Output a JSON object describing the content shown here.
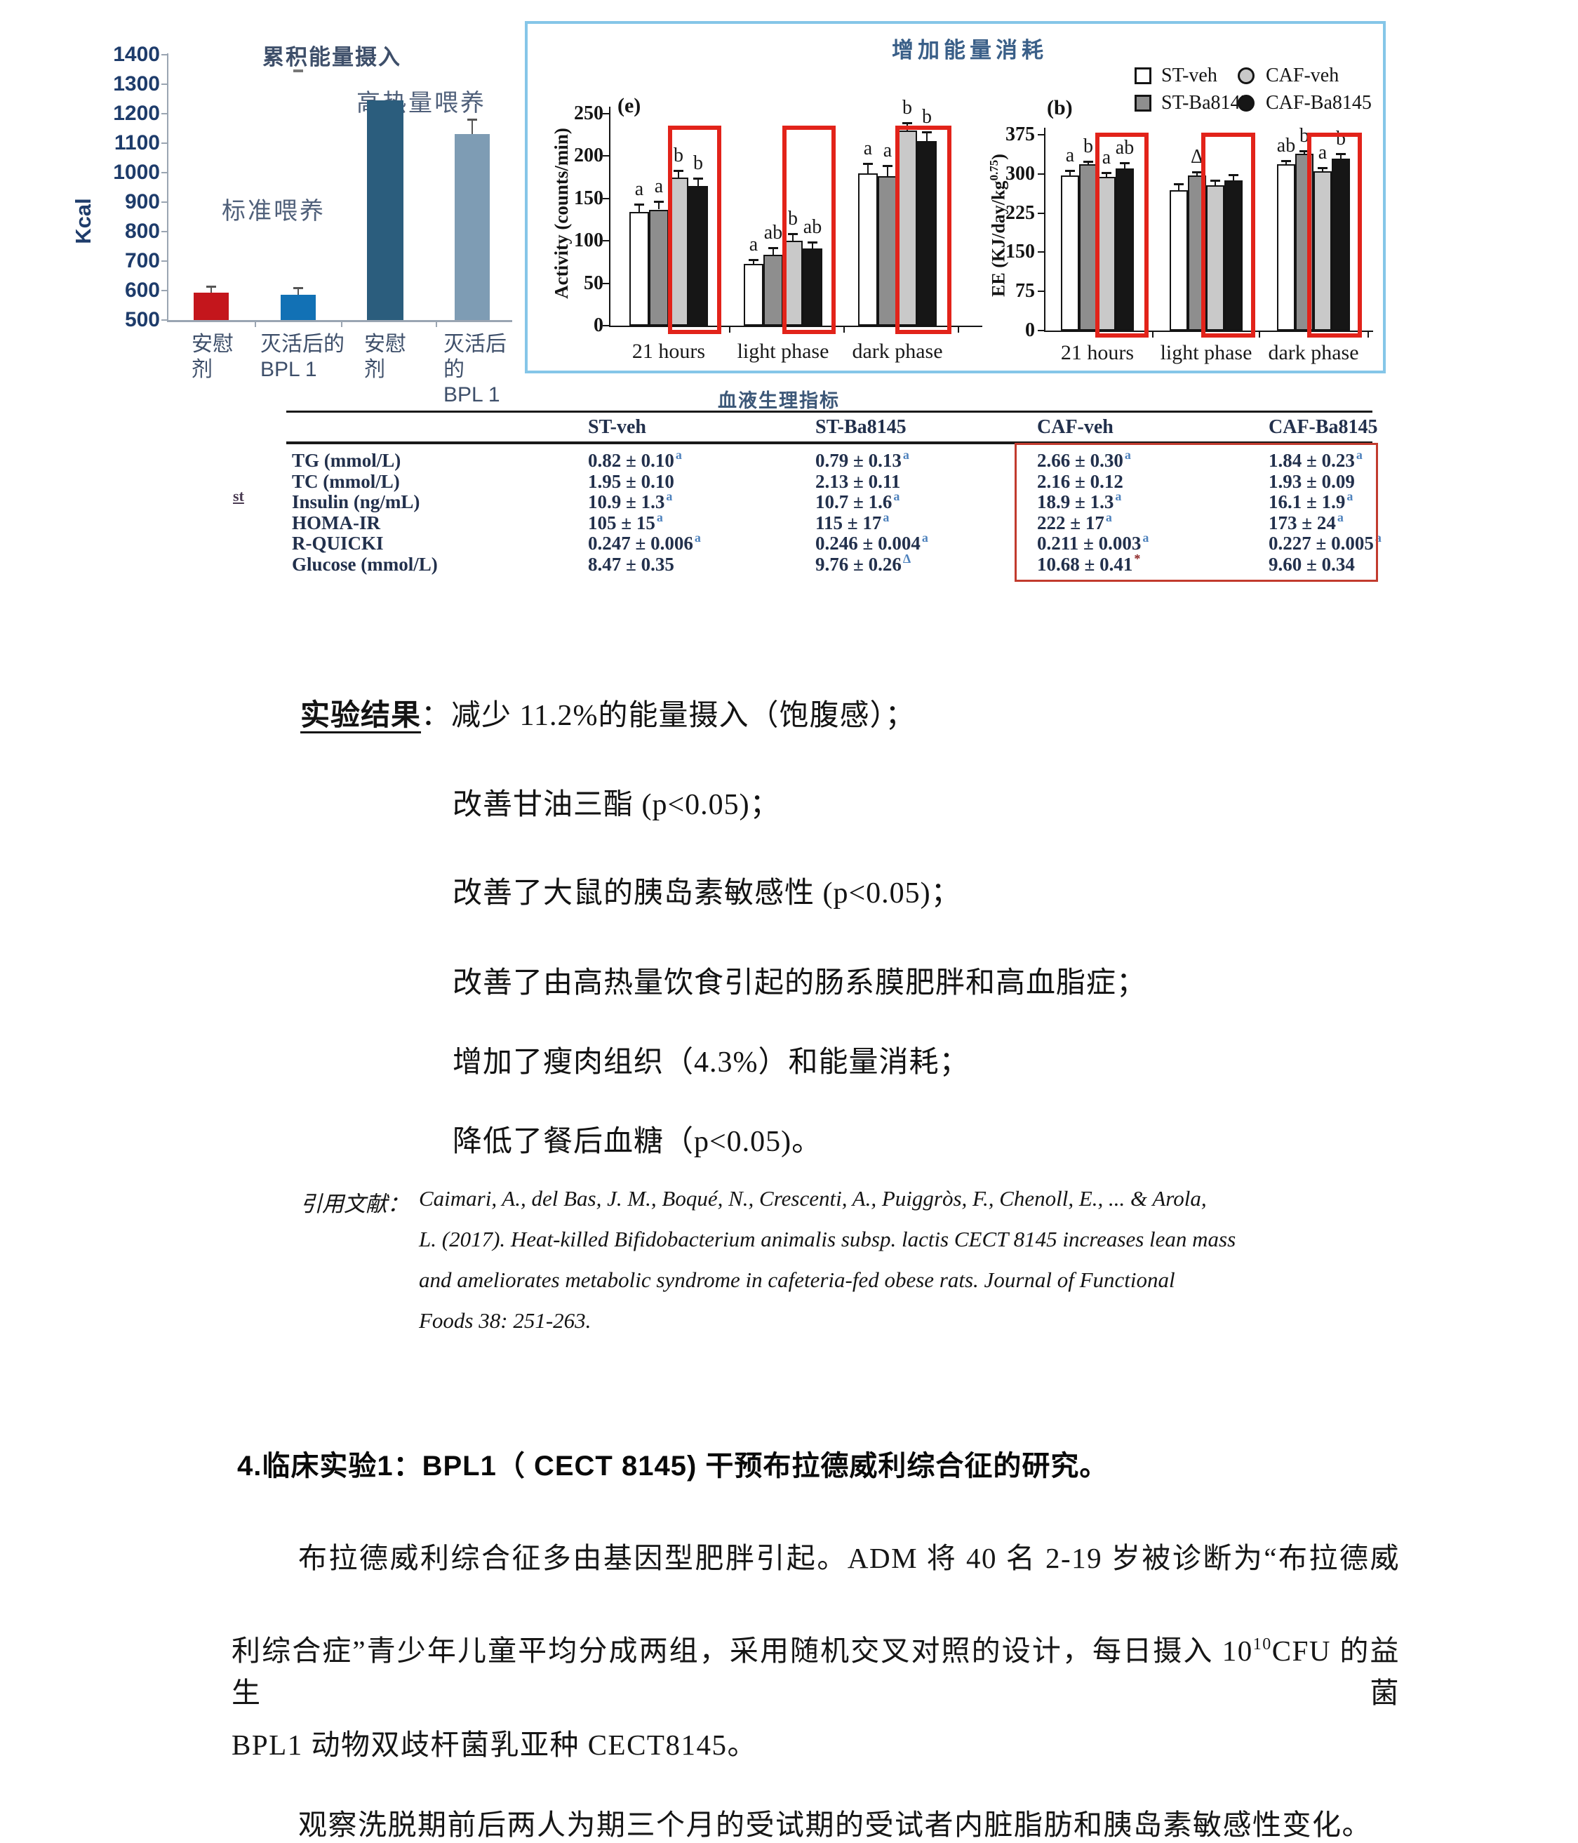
{
  "figure_box": {
    "title": "增加能量消耗"
  },
  "chart_data": [
    {
      "type": "bar",
      "title": "累积能量摄入",
      "ylabel": "Kcal",
      "ylim": [
        500,
        1400
      ],
      "yticks": [
        500,
        600,
        700,
        800,
        900,
        1000,
        1100,
        1200,
        1300,
        1400
      ],
      "categories": [
        "安慰\n剂",
        "灭活后的\nBPL 1",
        "安慰\n剂",
        "灭活后的\nBPL 1"
      ],
      "values": [
        592,
        585,
        1245,
        1130
      ],
      "errors": [
        19,
        21,
        0,
        48
      ],
      "bar_colors": [
        "#c4161c",
        "#1271b5",
        "#2b5d7d",
        "#7e9cb4"
      ],
      "annotations": [
        "标准喂养",
        "高热量喂养"
      ],
      "grid": "off",
      "legend_position": "none"
    },
    {
      "type": "grouped-bar",
      "panel": "(e)",
      "ylabel": "Activity (counts/min)",
      "ylim": [
        0,
        250
      ],
      "yticks": [
        0,
        50,
        100,
        150,
        200,
        250
      ],
      "categories": [
        "21 hours",
        "light phase",
        "dark phase"
      ],
      "series": [
        {
          "name": "ST-veh",
          "fill": "#ffffff",
          "values": [
            134,
            73,
            180
          ],
          "errors": [
            8,
            4,
            10
          ],
          "sig": [
            "a",
            "a",
            "a"
          ]
        },
        {
          "name": "ST-Ba8145",
          "fill": "#8e8e8e",
          "values": [
            137,
            84,
            176
          ],
          "errors": [
            9,
            7,
            12
          ],
          "sig": [
            "a",
            "ab",
            "a"
          ]
        },
        {
          "name": "CAF-veh",
          "fill": "#c9c9c9",
          "values": [
            175,
            100,
            230
          ],
          "errors": [
            7,
            8,
            8
          ],
          "sig": [
            "b",
            "b",
            "b"
          ]
        },
        {
          "name": "CAF-Ba8145",
          "fill": "#161616",
          "values": [
            165,
            91,
            218
          ],
          "errors": [
            8,
            7,
            10
          ],
          "sig": [
            "b",
            "ab",
            "b"
          ]
        }
      ],
      "highlight": "red boxes around CAF-veh and CAF-Ba8145 bars in every group"
    },
    {
      "type": "grouped-bar",
      "panel": "(b)",
      "ylabel_pre": "EE (KJ/day/kg",
      "ylabel_sup": "0.75",
      "ylabel_end": ")",
      "ylim": [
        0,
        375
      ],
      "yticks": [
        0,
        75,
        150,
        225,
        300,
        375
      ],
      "categories": [
        "21 hours",
        "light phase",
        "dark phase"
      ],
      "series": [
        {
          "name": "ST-veh",
          "fill": "#ffffff",
          "values": [
            297,
            269,
            318
          ],
          "errors": [
            8,
            10,
            6
          ],
          "sig": [
            "a",
            "",
            "ab"
          ]
        },
        {
          "name": "ST-Ba8145",
          "fill": "#8e8e8e",
          "values": [
            318,
            297,
            339
          ],
          "errors": [
            4,
            5,
            4
          ],
          "sig": [
            "b",
            "Δ",
            "b"
          ]
        },
        {
          "name": "CAF-veh",
          "fill": "#c9c9c9",
          "values": [
            294,
            278,
            305
          ],
          "errors": [
            7,
            8,
            6
          ],
          "sig": [
            "a",
            "",
            "a"
          ]
        },
        {
          "name": "CAF-Ba8145",
          "fill": "#161616",
          "values": [
            311,
            287,
            329
          ],
          "errors": [
            9,
            10,
            9
          ],
          "sig": [
            "ab",
            "",
            "b"
          ]
        }
      ],
      "highlight": "red boxes around CAF-veh and CAF-Ba8145 bars in every group"
    }
  ],
  "legend": [
    {
      "label": "ST-veh",
      "marker": "square",
      "fill": "#ffffff"
    },
    {
      "label": "ST-Ba8145",
      "marker": "square",
      "fill": "#8e8e8e"
    },
    {
      "label": "CAF-veh",
      "marker": "circle",
      "fill": "#c9c9c9"
    },
    {
      "label": "CAF-Ba8145",
      "marker": "circle",
      "fill": "#161616"
    }
  ],
  "table": {
    "title": "血液生理指标",
    "side_note": "st",
    "columns": [
      "ST-veh",
      "ST-Ba8145",
      "CAF-veh",
      "CAF-Ba8145"
    ],
    "rows": [
      {
        "label": "TG (mmol/L)",
        "cells": [
          {
            "v": "0.82 ± 0.10",
            "s": "a"
          },
          {
            "v": "0.79 ± 0.13",
            "s": "a"
          },
          {
            "v": "2.66 ± 0.30",
            "s": "a"
          },
          {
            "v": "1.84 ± 0.23",
            "s": "a"
          }
        ]
      },
      {
        "label": "TC (mmol/L)",
        "cells": [
          {
            "v": "1.95 ± 0.10",
            "s": ""
          },
          {
            "v": "2.13 ± 0.11",
            "s": ""
          },
          {
            "v": "2.16 ± 0.12",
            "s": ""
          },
          {
            "v": "1.93 ± 0.09",
            "s": ""
          }
        ]
      },
      {
        "label": "Insulin (ng/mL)",
        "cells": [
          {
            "v": "10.9 ± 1.3",
            "s": "a"
          },
          {
            "v": "10.7 ± 1.6",
            "s": "a"
          },
          {
            "v": "18.9 ± 1.3",
            "s": "a"
          },
          {
            "v": "16.1 ± 1.9",
            "s": "a"
          }
        ]
      },
      {
        "label": "HOMA-IR",
        "cells": [
          {
            "v": "105 ± 15",
            "s": "a"
          },
          {
            "v": "115 ± 17",
            "s": "a"
          },
          {
            "v": "222 ± 17",
            "s": "a"
          },
          {
            "v": "173 ± 24",
            "s": "a"
          }
        ]
      },
      {
        "label": "R-QUICKI",
        "cells": [
          {
            "v": "0.247 ± 0.006",
            "s": "a"
          },
          {
            "v": "0.246 ± 0.004",
            "s": "a"
          },
          {
            "v": "0.211 ± 0.003",
            "s": "a"
          },
          {
            "v": "0.227 ± 0.005",
            "s": "a"
          }
        ]
      },
      {
        "label": "Glucose (mmol/L)",
        "cells": [
          {
            "v": "8.47 ± 0.35",
            "s": ""
          },
          {
            "v": "9.76 ± 0.26",
            "s": "Δ"
          },
          {
            "v": "10.68 ± 0.41",
            "s": "*"
          },
          {
            "v": "9.60 ± 0.34",
            "s": ""
          }
        ]
      }
    ]
  },
  "results": {
    "heading": "实验结果",
    "separator": "：",
    "lines": [
      "减少 11.2%的能量摄入（饱腹感）；",
      "改善甘油三酯 (p<0.05)；",
      "改善了大鼠的胰岛素敏感性 (p<0.05)；",
      "改善了由高热量饮食引起的肠系膜肥胖和高血脂症；",
      "增加了瘦肉组织（4.3%）和能量消耗；",
      "降低了餐后血糖（p<0.05)。"
    ]
  },
  "citation": {
    "label": "引用文献：",
    "lines": [
      "Caimari, A., del Bas, J. M., Boqué, N., Crescenti, A., Puiggròs, F., Chenoll, E., ... & Arola,",
      "L. (2017). Heat-killed Bifidobacterium animalis subsp. lactis CECT 8145 increases lean mass",
      "and ameliorates metabolic syndrome in cafeteria-fed obese rats. Journal of Functional",
      "Foods 38: 251-263."
    ]
  },
  "section4": {
    "title": "4.临床实验1：BPL1（ CECT 8145) 干预布拉德威利综合征的研究。",
    "p1": "布拉德威利综合征多由基因型肥胖引起。ADM 将 40 名 2-19 岁被诊断为“布拉德威",
    "p2_pre": "利综合症”青少年儿童平均分成两组，采用随机交叉对照的设计，每日摄入 10",
    "p2_sup": "10",
    "p2_post": "CFU 的益生菌",
    "p3": "BPL1 动物双歧杆菌乳亚种 CECT8145。",
    "p4": "观察洗脱期前后两人为期三个月的受试期的受试者内脏脂肪和胰岛素敏感性变化。"
  }
}
